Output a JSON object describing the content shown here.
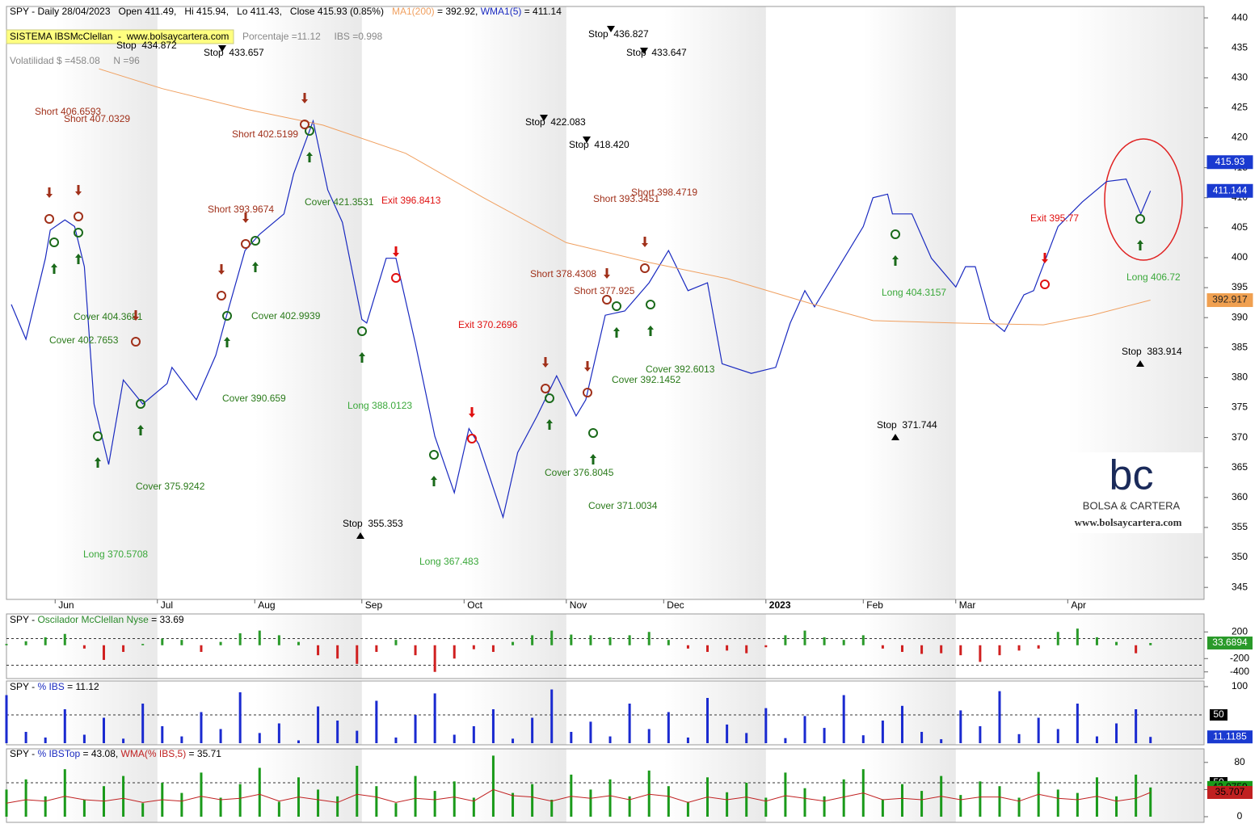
{
  "chart_data": [
    {
      "type": "line",
      "title_parts": [
        {
          "text": "SPY - Daily 28/04/2023   Open 411.49,   Hi 415.94,   Lo 411.43,   Close 415.93 (0.85%)   ",
          "color": "#000000"
        },
        {
          "text": "MA1(200)",
          "color": "#f0a060"
        },
        {
          "text": " = 392.92, ",
          "color": "#000000"
        },
        {
          "text": "WMA1(5)",
          "color": "#1a2ac0"
        },
        {
          "text": " = 411.14",
          "color": "#000000"
        }
      ],
      "system_label": "SISTEMA IBSMcClellan  -  www.bolsaycartera.com",
      "info_line": "Porcentaje =11.12     IBS =0.998",
      "volatility": "Volatilidad $ =458.08     N =96",
      "logo": {
        "mark": "bc",
        "name": "BOLSA & CARTERA",
        "url": "www.bolsaycartera.com"
      },
      "xlim": [
        0,
        246
      ],
      "xticks": [
        {
          "value": 10,
          "label": "Jun"
        },
        {
          "value": 31,
          "label": "Jul"
        },
        {
          "value": 51,
          "label": "Aug"
        },
        {
          "value": 73,
          "label": "Sep"
        },
        {
          "value": 94,
          "label": "Oct"
        },
        {
          "value": 115,
          "label": "Nov"
        },
        {
          "value": 135,
          "label": "Dec"
        },
        {
          "value": 156,
          "label": "2023"
        },
        {
          "value": 176,
          "label": "Feb"
        },
        {
          "value": 195,
          "label": "Mar"
        },
        {
          "value": 218,
          "label": "Apr"
        }
      ],
      "ylim": [
        343,
        441.9
      ],
      "yticks": [
        345,
        350,
        355,
        360,
        365,
        370,
        375,
        380,
        385,
        390,
        395,
        400,
        405,
        410,
        415,
        420,
        425,
        430,
        435,
        440
      ],
      "series": [
        {
          "name": "WMA1(5)",
          "color": "#1a2ac0",
          "x": [
            1,
            4,
            8,
            9,
            12,
            14,
            16,
            18,
            21,
            24,
            28,
            33,
            34,
            39,
            43,
            45,
            49,
            52,
            57,
            59,
            63,
            66,
            69,
            73,
            74,
            78,
            80,
            84,
            88,
            92,
            95,
            97,
            102,
            105,
            109,
            113,
            117,
            119,
            123,
            127,
            132,
            136,
            140,
            144,
            147,
            153,
            158,
            161,
            164,
            166,
            171,
            176,
            178,
            181,
            182,
            186,
            190,
            195,
            197,
            199,
            202,
            205,
            209,
            211,
            216,
            221,
            226,
            230,
            233,
            235
          ],
          "values": [
            392.2,
            386.4,
            399.9,
            404.6,
            406.3,
            405.2,
            398.5,
            375.6,
            365.5,
            379.6,
            375.6,
            379.0,
            381.7,
            376.3,
            383.7,
            389.7,
            401.2,
            403.9,
            407.3,
            414.0,
            422.8,
            411.3,
            405.9,
            389.7,
            389.1,
            399.9,
            399.9,
            385.7,
            370.2,
            360.8,
            371.5,
            368.9,
            356.7,
            367.5,
            373.6,
            380.3,
            373.6,
            376.3,
            390.4,
            391.1,
            395.8,
            401.2,
            394.5,
            395.8,
            382.3,
            380.7,
            381.7,
            389.1,
            394.5,
            391.8,
            398.5,
            405.2,
            410.0,
            410.6,
            407.3,
            407.3,
            399.9,
            395.1,
            398.5,
            398.5,
            389.7,
            387.7,
            393.8,
            394.5,
            405.2,
            409.3,
            412.7,
            413.1,
            407.3,
            411.14
          ]
        },
        {
          "name": "MA1(200)",
          "color": "#f0a060",
          "x": [
            19,
            32,
            49,
            65,
            82,
            98,
            115,
            132,
            148,
            165,
            178,
            195,
            213,
            223,
            235
          ],
          "values": [
            431.5,
            428.2,
            424.8,
            422.1,
            417.4,
            410.0,
            402.5,
            399.2,
            396.5,
            392.4,
            389.5,
            389.1,
            388.8,
            390.4,
            392.92
          ]
        }
      ],
      "price_markers": {
        "values": [
          415.93,
          411.144,
          392.917
        ],
        "colors": [
          "#1a3ad0",
          "#1a3ad0",
          "#f0a050"
        ]
      },
      "annotations": {
        "stops": [
          "Stop  434.872",
          "Stop  433.657",
          "Stop  436.827",
          "Stop  433.647",
          "Stop  422.083",
          "Stop  418.420",
          "Stop  355.353",
          "Stop  371.744",
          "Stop  383.914"
        ],
        "shorts": [
          "Short 406.6593",
          "Short 407.0329",
          "Short 402.5199",
          "Short 393.9674",
          "Short 393.3451",
          "Short 398.4719",
          "Short 378.4308",
          "Short 377.925"
        ],
        "exits": [
          "Exit 396.8413",
          "Exit 370.2696",
          "Exit 395.77"
        ],
        "covers": [
          "Cover 404.3681",
          "Cover 402.7653",
          "Cover 421.3531",
          "Cover 402.9939",
          "Cover 390.659",
          "Cover 375.9242",
          "Cover 392.6013",
          "Cover 392.1452",
          "Cover 376.8045",
          "Cover 371.0034"
        ],
        "longs": [
          "Long 370.5708",
          "Long 388.0123",
          "Long 367.483",
          "Long 404.3157",
          "Long 406.72"
        ]
      }
    },
    {
      "type": "bar",
      "title_parts": [
        {
          "text": "SPY - ",
          "color": "#000000"
        },
        {
          "text": "Oscilador McClellan Nyse",
          "color": "#2a8a2a"
        },
        {
          "text": " = 33.69",
          "color": "#000000"
        }
      ],
      "x": [
        0,
        4,
        8,
        12,
        16,
        20,
        24,
        28,
        32,
        36,
        40,
        44,
        48,
        52,
        56,
        60,
        64,
        68,
        72,
        76,
        80,
        84,
        88,
        92,
        96,
        100,
        104,
        108,
        112,
        116,
        120,
        124,
        128,
        132,
        136,
        140,
        144,
        148,
        152,
        156,
        160,
        164,
        168,
        172,
        176,
        180,
        184,
        188,
        192,
        196,
        200,
        204,
        208,
        212,
        216,
        220,
        224,
        228,
        232,
        235
      ],
      "values": [
        20,
        60,
        120,
        170,
        -50,
        -220,
        -100,
        20,
        100,
        80,
        -100,
        50,
        180,
        220,
        150,
        50,
        -150,
        -200,
        -280,
        -100,
        80,
        -150,
        -400,
        -200,
        -60,
        -100,
        50,
        150,
        220,
        160,
        150,
        120,
        150,
        200,
        80,
        -50,
        -100,
        -80,
        -120,
        -30,
        150,
        220,
        120,
        80,
        150,
        -50,
        -100,
        -130,
        -120,
        -150,
        -250,
        -150,
        -80,
        -50,
        200,
        250,
        120,
        50,
        -120,
        33.69
      ],
      "colors": {
        "positive": "#2a9a2a",
        "negative": "#d02020"
      },
      "ylim": [
        -500,
        470
      ],
      "yticks": [
        200,
        -200,
        -400
      ],
      "levels": [
        100,
        -300
      ],
      "last_value": 33.6894,
      "last_color": "#2a9a2a"
    },
    {
      "type": "bar",
      "title_parts": [
        {
          "text": "SPY - ",
          "color": "#000000"
        },
        {
          "text": "% IBS",
          "color": "#1a2ac0"
        },
        {
          "text": " = 11.12",
          "color": "#000000"
        }
      ],
      "x": [
        0,
        4,
        8,
        12,
        16,
        20,
        24,
        28,
        32,
        36,
        40,
        44,
        48,
        52,
        56,
        60,
        64,
        68,
        72,
        76,
        80,
        84,
        88,
        92,
        96,
        100,
        104,
        108,
        112,
        116,
        120,
        124,
        128,
        132,
        136,
        140,
        144,
        148,
        152,
        156,
        160,
        164,
        168,
        172,
        176,
        180,
        184,
        188,
        192,
        196,
        200,
        204,
        208,
        212,
        216,
        220,
        224,
        228,
        232,
        235
      ],
      "values": [
        85,
        20,
        10,
        60,
        15,
        45,
        8,
        70,
        30,
        12,
        55,
        25,
        90,
        18,
        35,
        5,
        65,
        40,
        22,
        75,
        10,
        50,
        88,
        15,
        30,
        60,
        8,
        45,
        95,
        20,
        38,
        12,
        70,
        25,
        55,
        10,
        80,
        33,
        18,
        62,
        9,
        48,
        27,
        85,
        14,
        40,
        66,
        20,
        7,
        58,
        30,
        92,
        16,
        45,
        25,
        70,
        12,
        35,
        60,
        11.12
      ],
      "color": "#1a2ad0",
      "ylim": [
        0,
        110
      ],
      "yticks": [
        100
      ],
      "levels": [
        50
      ],
      "last_value": 11.1185,
      "last_color": "#1a3ad0"
    },
    {
      "type": "bar",
      "title_parts": [
        {
          "text": "SPY - ",
          "color": "#000000"
        },
        {
          "text": "% IBSTop",
          "color": "#1a2ac0"
        },
        {
          "text": " = 43.08, ",
          "color": "#000000"
        },
        {
          "text": "WMA(% IBS,5)",
          "color": "#c02020"
        },
        {
          "text": " = 35.71",
          "color": "#000000"
        }
      ],
      "x": [
        0,
        4,
        8,
        12,
        16,
        20,
        24,
        28,
        32,
        36,
        40,
        44,
        48,
        52,
        56,
        60,
        64,
        68,
        72,
        76,
        80,
        84,
        88,
        92,
        96,
        100,
        104,
        108,
        112,
        116,
        120,
        124,
        128,
        132,
        136,
        140,
        144,
        148,
        152,
        156,
        160,
        164,
        168,
        172,
        176,
        180,
        184,
        188,
        192,
        196,
        200,
        204,
        208,
        212,
        216,
        220,
        224,
        228,
        232,
        235
      ],
      "series": [
        {
          "name": "% IBSTop",
          "color": "#1a9a1a",
          "values": [
            40,
            55,
            30,
            70,
            25,
            45,
            60,
            20,
            50,
            35,
            65,
            28,
            48,
            72,
            22,
            58,
            40,
            30,
            75,
            45,
            20,
            60,
            38,
            52,
            28,
            90,
            35,
            48,
            25,
            62,
            40,
            55,
            30,
            68,
            45,
            22,
            58,
            36,
            50,
            28,
            65,
            42,
            30,
            55,
            70,
            25,
            48,
            38,
            60,
            32,
            52,
            45,
            28,
            66,
            40,
            35,
            58,
            30,
            62,
            43.08
          ]
        },
        {
          "name": "WMA(% IBS,5)",
          "color": "#c02020",
          "values": [
            20,
            25,
            23,
            30,
            25,
            23,
            27,
            21,
            25,
            23,
            30,
            25,
            27,
            33,
            23,
            29,
            25,
            21,
            33,
            29,
            21,
            27,
            25,
            29,
            23,
            40,
            31,
            29,
            23,
            30,
            27,
            31,
            25,
            33,
            30,
            21,
            29,
            25,
            29,
            23,
            31,
            27,
            23,
            29,
            35,
            25,
            27,
            25,
            30,
            25,
            29,
            29,
            23,
            33,
            27,
            25,
            30,
            23,
            27,
            35.71
          ]
        }
      ],
      "ylim": [
        0,
        100
      ],
      "yticks": [
        80,
        40,
        0
      ],
      "levels": [
        50
      ],
      "last_values": [
        43.0759,
        35.707
      ]
    }
  ]
}
